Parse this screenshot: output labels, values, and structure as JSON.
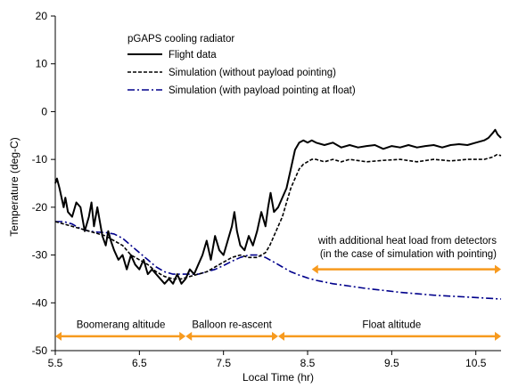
{
  "chart_data": {
    "type": "line",
    "xlabel": "Local Time (hr)",
    "ylabel": "Temperature (deg-C)",
    "xlim": [
      5.5,
      10.8
    ],
    "ylim": [
      -50,
      20
    ],
    "xticks": [
      5.5,
      6.5,
      7.5,
      8.5,
      9.5,
      10.5
    ],
    "xtick_labels": [
      "5.5",
      "6.5",
      "7.5",
      "8.5",
      "9.5",
      "10.5"
    ],
    "yticks": [
      -50,
      -40,
      -30,
      -20,
      -10,
      0,
      10,
      20
    ],
    "ytick_labels": [
      "-50",
      "-40",
      "-30",
      "-20",
      "-10",
      "0",
      "10",
      "20"
    ],
    "grid": false,
    "legend_title": "pGAPS cooling radiator",
    "legend_position": "top-left",
    "series": [
      {
        "name": "Flight data",
        "color": "#000000",
        "style": "solid",
        "x": [
          5.5,
          5.52,
          5.55,
          5.6,
          5.62,
          5.65,
          5.7,
          5.75,
          5.8,
          5.85,
          5.9,
          5.93,
          5.96,
          6.0,
          6.03,
          6.06,
          6.1,
          6.13,
          6.16,
          6.2,
          6.25,
          6.3,
          6.35,
          6.4,
          6.45,
          6.5,
          6.55,
          6.6,
          6.65,
          6.7,
          6.75,
          6.8,
          6.85,
          6.9,
          6.95,
          7.0,
          7.05,
          7.1,
          7.15,
          7.2,
          7.25,
          7.3,
          7.35,
          7.4,
          7.45,
          7.5,
          7.55,
          7.6,
          7.63,
          7.66,
          7.7,
          7.75,
          7.8,
          7.85,
          7.9,
          7.95,
          8.0,
          8.03,
          8.06,
          8.1,
          8.15,
          8.2,
          8.25,
          8.3,
          8.35,
          8.4,
          8.45,
          8.5,
          8.55,
          8.6,
          8.7,
          8.8,
          8.9,
          9.0,
          9.1,
          9.2,
          9.3,
          9.4,
          9.5,
          9.6,
          9.7,
          9.8,
          9.9,
          10.0,
          10.1,
          10.2,
          10.3,
          10.4,
          10.5,
          10.6,
          10.65,
          10.7,
          10.73,
          10.76,
          10.8
        ],
        "y": [
          -15,
          -14,
          -16,
          -20,
          -18,
          -21,
          -22,
          -19,
          -20,
          -25,
          -22,
          -19,
          -24,
          -20,
          -23,
          -26,
          -28,
          -25,
          -27,
          -29,
          -31,
          -30,
          -33,
          -30,
          -32,
          -33,
          -31,
          -34,
          -33,
          -34,
          -35,
          -36,
          -35,
          -36,
          -34,
          -36,
          -35,
          -33,
          -34,
          -32,
          -30,
          -27,
          -31,
          -26,
          -29,
          -30,
          -27,
          -24,
          -21,
          -25,
          -28,
          -29,
          -26,
          -28,
          -25,
          -21,
          -24,
          -20,
          -17,
          -21,
          -20,
          -18,
          -16,
          -12,
          -8,
          -6.5,
          -6,
          -6.5,
          -6,
          -6.5,
          -7,
          -6.5,
          -7.5,
          -7,
          -7.5,
          -7.2,
          -7,
          -7.8,
          -7.2,
          -7.5,
          -7,
          -7.5,
          -7.2,
          -7,
          -7.5,
          -7,
          -6.8,
          -7,
          -6.5,
          -6,
          -5.5,
          -4.5,
          -3.8,
          -4.8,
          -5.5
        ]
      },
      {
        "name": "Simulation (without payload pointing)",
        "color": "#000000",
        "style": "dashed",
        "x": [
          5.5,
          5.6,
          5.7,
          5.8,
          5.9,
          6.0,
          6.1,
          6.2,
          6.3,
          6.4,
          6.5,
          6.6,
          6.7,
          6.8,
          6.9,
          7.0,
          7.1,
          7.2,
          7.3,
          7.4,
          7.5,
          7.6,
          7.7,
          7.8,
          7.9,
          8.0,
          8.05,
          8.1,
          8.15,
          8.2,
          8.25,
          8.3,
          8.35,
          8.4,
          8.45,
          8.5,
          8.55,
          8.6,
          8.7,
          8.8,
          8.9,
          9.0,
          9.2,
          9.4,
          9.6,
          9.8,
          10.0,
          10.2,
          10.4,
          10.5,
          10.6,
          10.7,
          10.75,
          10.8
        ],
        "y": [
          -23,
          -23.5,
          -24,
          -24.5,
          -25,
          -25.5,
          -26,
          -27,
          -28,
          -30,
          -31,
          -32,
          -33.5,
          -34.5,
          -35,
          -35,
          -34.5,
          -34,
          -33.5,
          -32.5,
          -31.5,
          -30.5,
          -30,
          -30.5,
          -30.5,
          -29.5,
          -28,
          -26,
          -24,
          -22,
          -19,
          -16,
          -14,
          -12,
          -11,
          -10.5,
          -10,
          -10,
          -10.5,
          -10,
          -10.5,
          -10,
          -10.5,
          -10.2,
          -10,
          -10.5,
          -10,
          -10.3,
          -10,
          -10,
          -10,
          -9.5,
          -9,
          -9.2
        ]
      },
      {
        "name": "Simulation (with payload pointing at float)",
        "color": "#00008b",
        "style": "dashdot",
        "x": [
          5.5,
          5.6,
          5.7,
          5.8,
          5.9,
          6.0,
          6.1,
          6.2,
          6.3,
          6.4,
          6.5,
          6.6,
          6.7,
          6.8,
          6.9,
          7.0,
          7.1,
          7.2,
          7.3,
          7.4,
          7.5,
          7.6,
          7.7,
          7.8,
          7.9,
          8.0,
          8.1,
          8.2,
          8.3,
          8.4,
          8.5,
          8.6,
          8.8,
          9.0,
          9.2,
          9.4,
          9.6,
          9.8,
          10.0,
          10.2,
          10.4,
          10.6,
          10.8
        ],
        "y": [
          -23,
          -23,
          -23.5,
          -24.5,
          -25,
          -25.2,
          -25.3,
          -25.6,
          -26.5,
          -28,
          -29.5,
          -31,
          -32.5,
          -33.5,
          -34,
          -34,
          -34,
          -34,
          -33.5,
          -33,
          -32.2,
          -31.3,
          -30.5,
          -30,
          -30,
          -30.5,
          -31.5,
          -32.5,
          -33.5,
          -34.2,
          -34.8,
          -35.3,
          -36,
          -36.5,
          -37,
          -37.4,
          -37.8,
          -38.1,
          -38.4,
          -38.6,
          -38.8,
          -39,
          -39.2
        ]
      }
    ],
    "annotations": {
      "heatload_line1": "with additional heat load from detectors",
      "heatload_line2": "(in the case of simulation with pointing)",
      "heatload_arrow": {
        "x_start": 8.55,
        "x_end": 10.8,
        "y": -33
      },
      "phases": [
        {
          "label": "Boomerang altitude",
          "x_start": 5.5,
          "x_end": 7.05,
          "label_x": 6.28
        },
        {
          "label": "Balloon re-ascent",
          "x_start": 7.05,
          "x_end": 8.15,
          "label_x": 7.6
        },
        {
          "label": "Float altitude",
          "x_start": 8.15,
          "x_end": 10.8,
          "label_x": 9.5
        }
      ],
      "phase_arrow_y": -47,
      "phase_label_y": -44.5,
      "arrow_color": "#f79a1e"
    }
  }
}
